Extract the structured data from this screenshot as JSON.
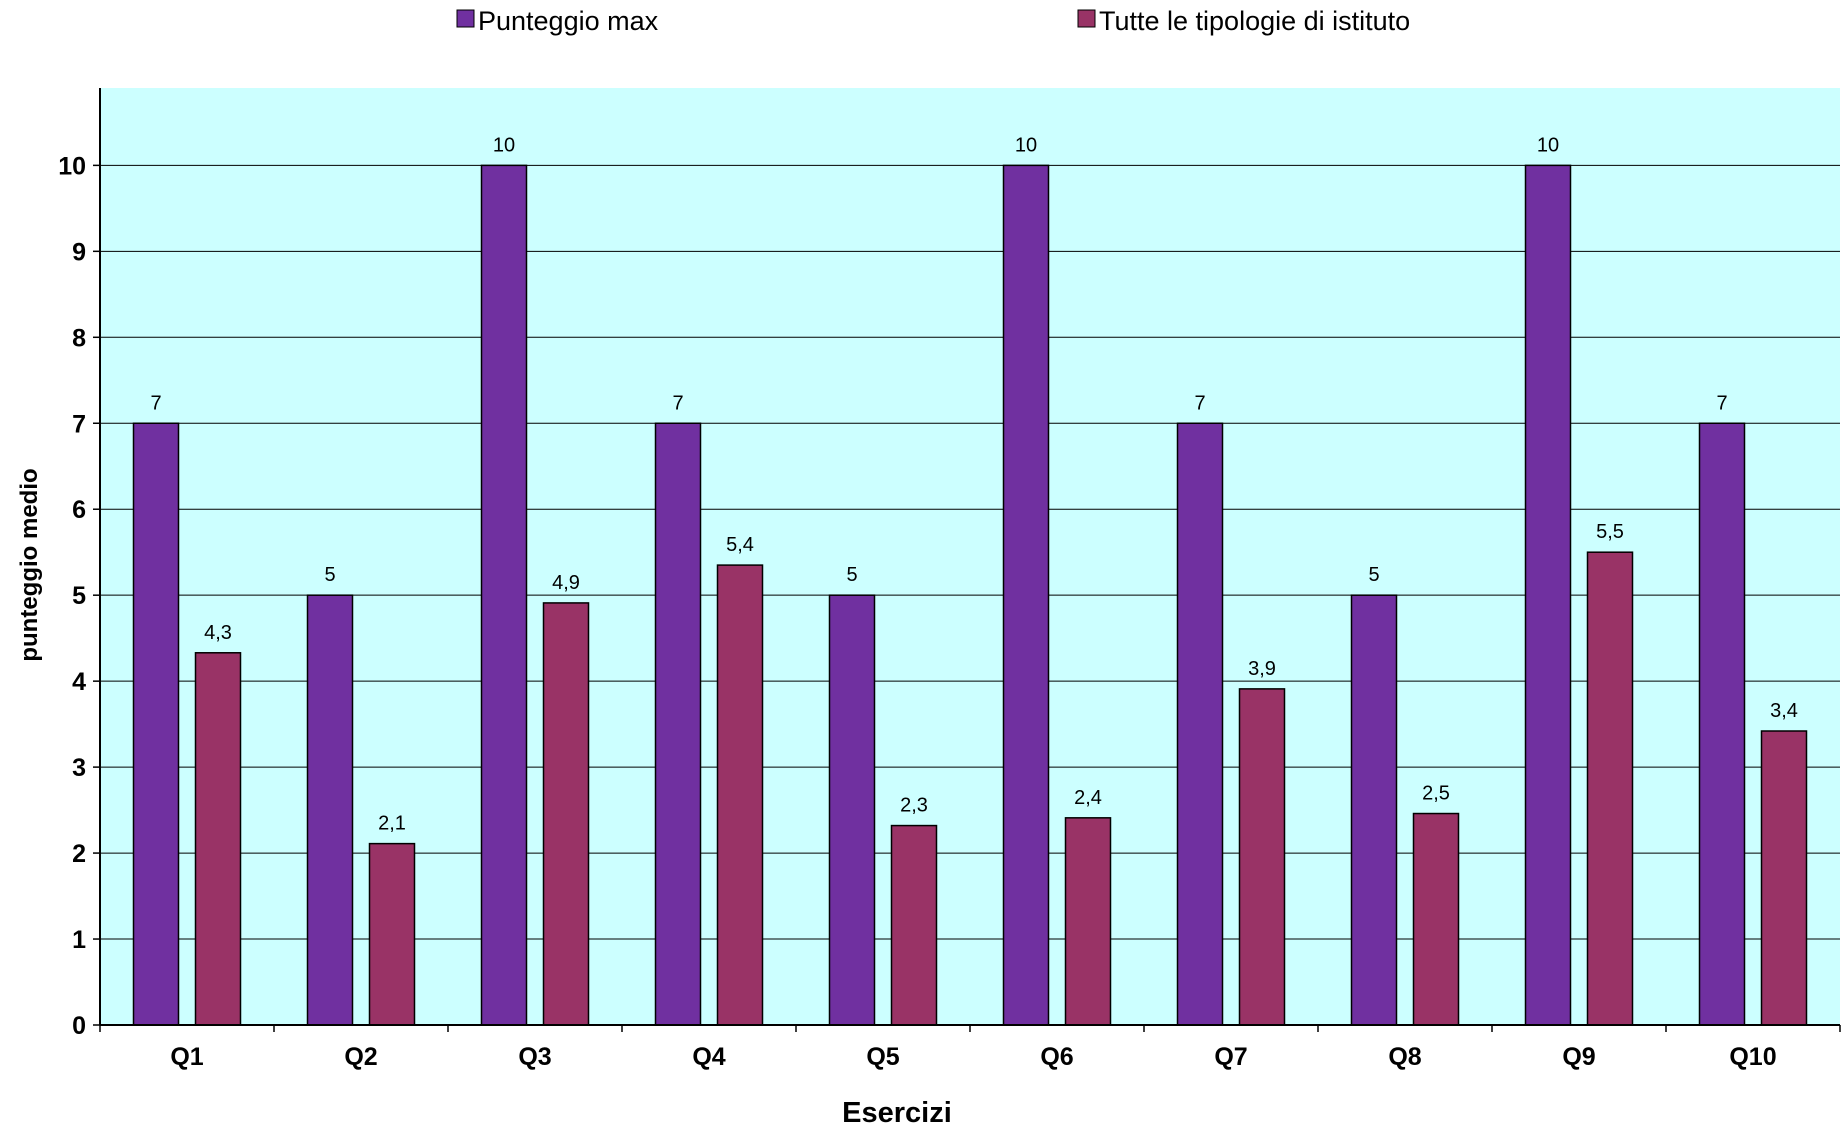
{
  "chart_data": {
    "type": "bar",
    "categories": [
      "Q1",
      "Q2",
      "Q3",
      "Q4",
      "Q5",
      "Q6",
      "Q7",
      "Q8",
      "Q9",
      "Q10"
    ],
    "series": [
      {
        "name": "Punteggio max",
        "color": "#7030A0",
        "values": [
          7,
          5,
          10,
          7,
          5,
          10,
          7,
          5,
          10,
          7
        ],
        "labels": [
          "7",
          "5",
          "10",
          "7",
          "5",
          "10",
          "7",
          "5",
          "10",
          "7"
        ]
      },
      {
        "name": "Tutte le tipologie di istituto",
        "color": "#993366",
        "values": [
          4.33,
          2.11,
          4.91,
          5.35,
          2.32,
          2.41,
          3.91,
          2.46,
          5.5,
          3.42
        ],
        "labels": [
          "4,3",
          "2,1",
          "4,9",
          "5,4",
          "2,3",
          "2,4",
          "3,9",
          "2,5",
          "5,5",
          "3,4"
        ]
      }
    ],
    "xlabel": "Esercizi",
    "ylabel": "punteggio  medio",
    "ylim": [
      0,
      10.9
    ],
    "yticks": [
      "0",
      "1",
      "2",
      "3",
      "4",
      "5",
      "6",
      "7",
      "8",
      "9",
      "10"
    ],
    "grid": true,
    "legend_position": "top",
    "plot_background": "#CCFFFF"
  }
}
